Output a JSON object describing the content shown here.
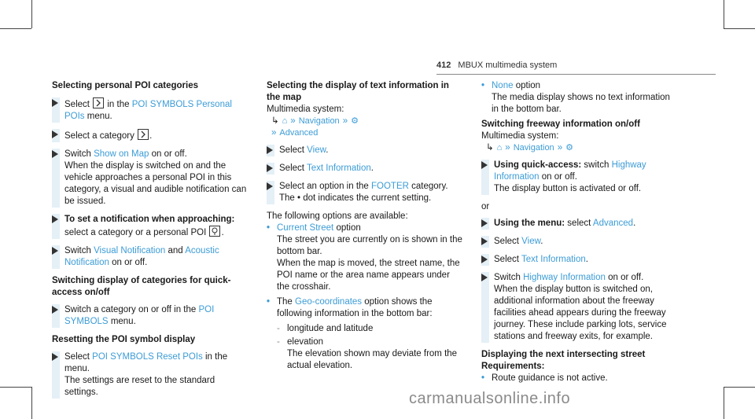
{
  "header": {
    "page_number": "412",
    "title": "MBUX multimedia system"
  },
  "col1": {
    "h1": "Selecting personal POI categories",
    "s1_pre": "Select",
    "s1_mid": "in the",
    "s1_link": "POI SYMBOLS Personal POIs",
    "s1_post": "menu.",
    "s2": "Select a category",
    "s3_pre": "Switch",
    "s3_link": "Show on Map",
    "s3_post": "on or off.",
    "s3_body": "When the display is switched on and the vehicle approaches a personal POI in this category, a visual and audible notification can be issued.",
    "s4_bold": "To set a notification when approaching:",
    "s4_body": "select a category or a personal POI",
    "s5_pre": "Switch",
    "s5_link1": "Visual Notification",
    "s5_and": "and",
    "s5_link2": "Acoustic Notification",
    "s5_post": "on or off.",
    "h2": "Switching display of categories for quick-access on/off",
    "s6_pre": "Switch a category on or off in the",
    "s6_link": "POI SYMBOLS",
    "s6_post": "menu.",
    "h3": "Resetting the POI symbol display",
    "s7_pre": "Select",
    "s7_link": "POI SYMBOLS Reset POIs",
    "s7_post": "in the menu.",
    "s7_body": "The settings are reset to the standard settings."
  },
  "col2": {
    "h1": "Selecting the display of text information in the map",
    "sys": "Multimedia system:",
    "nav": "Navigation",
    "adv": "Advanced",
    "s1_pre": "Select",
    "s1_link": "View",
    "s2_pre": "Select",
    "s2_link": "Text Information",
    "s3_pre": "Select an option in the",
    "s3_link": "FOOTER",
    "s3_post": "category.",
    "s3_body": "The • dot indicates the current setting.",
    "avail": "The following options are available:",
    "b1_link": "Current Street",
    "b1_post": "option",
    "b1_body1": "The street you are currently on is shown in the bottom bar.",
    "b1_body2": "When the map is moved, the street name, the POI name or the area name appears under the crosshair.",
    "b2_pre": "The",
    "b2_link": "Geo-coordinates",
    "b2_post": "option shows the following information in the bottom bar:",
    "d1": "longitude and latitude",
    "d2": "elevation",
    "d2_body": "The elevation shown may deviate from the actual elevation."
  },
  "col3": {
    "b1_link": "None",
    "b1_post": "option",
    "b1_body": "The media display shows no text information in the bottom bar.",
    "h1": "Switching freeway information on/off",
    "sys": "Multimedia system:",
    "nav": "Navigation",
    "s1_bold": "Using quick-access:",
    "s1_pre": "switch",
    "s1_link": "Highway Information",
    "s1_post": "on or off.",
    "s1_body": "The display button is activated or off.",
    "or": "or",
    "s2_bold": "Using the menu:",
    "s2_pre": "select",
    "s2_link": "Advanced",
    "s3_pre": "Select",
    "s3_link": "View",
    "s4_pre": "Select",
    "s4_link": "Text Information",
    "s5_pre": "Switch",
    "s5_link": "Highway Information",
    "s5_post": "on or off.",
    "s5_body": "When the display button is switched on, additional information about the freeway facilities ahead appears during the freeway journey. These include parking lots, service stations and freeway exits, for example.",
    "h2": "Displaying the next intersecting street",
    "req": "Requirements:",
    "r1": "Route guidance is not active."
  },
  "watermark": "carmanualsonline.info",
  "colors": {
    "link": "#3c9cd6",
    "stepbar": "#e4f0f6"
  }
}
